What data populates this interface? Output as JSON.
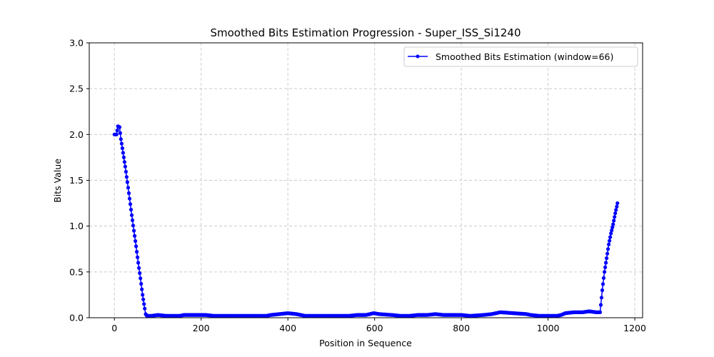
{
  "chart_data": {
    "type": "line",
    "title": "Smoothed Bits Estimation Progression - Super_ISS_Si1240",
    "xlabel": "Position in Sequence",
    "ylabel": "Bits Value",
    "xlim": [
      -58,
      1218
    ],
    "ylim": [
      0,
      3
    ],
    "xticks": [
      0,
      200,
      400,
      600,
      800,
      1000,
      1200
    ],
    "yticks": [
      0.0,
      0.5,
      1.0,
      1.5,
      2.0,
      2.5,
      3.0
    ],
    "ytick_labels": [
      "0.0",
      "0.5",
      "1.0",
      "1.5",
      "2.0",
      "2.5",
      "3.0"
    ],
    "grid": true,
    "legend_position": "upper right",
    "series": [
      {
        "name": "Smoothed Bits Estimation (window=66)",
        "color": "#0000ff",
        "marker": "circle",
        "x": [
          0,
          5,
          8,
          12,
          15,
          20,
          25,
          30,
          35,
          40,
          45,
          50,
          55,
          60,
          65,
          70,
          72,
          75,
          78,
          85,
          100,
          120,
          150,
          160,
          180,
          200,
          210,
          230,
          260,
          280,
          300,
          330,
          350,
          360,
          380,
          400,
          420,
          440,
          460,
          480,
          500,
          540,
          560,
          580,
          598,
          610,
          640,
          660,
          680,
          700,
          720,
          740,
          760,
          780,
          800,
          820,
          850,
          870,
          890,
          920,
          950,
          960,
          980,
          1000,
          1020,
          1030,
          1040,
          1060,
          1080,
          1095,
          1110,
          1120,
          1125,
          1130,
          1135,
          1140,
          1145,
          1150,
          1155,
          1160
        ],
        "y": [
          2.0,
          2.0,
          2.09,
          2.08,
          1.95,
          1.8,
          1.65,
          1.48,
          1.3,
          1.12,
          0.95,
          0.78,
          0.6,
          0.43,
          0.25,
          0.1,
          0.04,
          0.02,
          0.02,
          0.02,
          0.03,
          0.02,
          0.02,
          0.03,
          0.03,
          0.03,
          0.03,
          0.02,
          0.02,
          0.02,
          0.02,
          0.02,
          0.02,
          0.03,
          0.04,
          0.05,
          0.04,
          0.02,
          0.02,
          0.02,
          0.02,
          0.02,
          0.03,
          0.03,
          0.05,
          0.04,
          0.03,
          0.02,
          0.02,
          0.03,
          0.03,
          0.04,
          0.03,
          0.03,
          0.03,
          0.02,
          0.03,
          0.04,
          0.06,
          0.05,
          0.04,
          0.03,
          0.02,
          0.02,
          0.02,
          0.03,
          0.05,
          0.06,
          0.06,
          0.07,
          0.06,
          0.06,
          0.3,
          0.5,
          0.65,
          0.8,
          0.92,
          1.02,
          1.14,
          1.25
        ]
      }
    ]
  }
}
